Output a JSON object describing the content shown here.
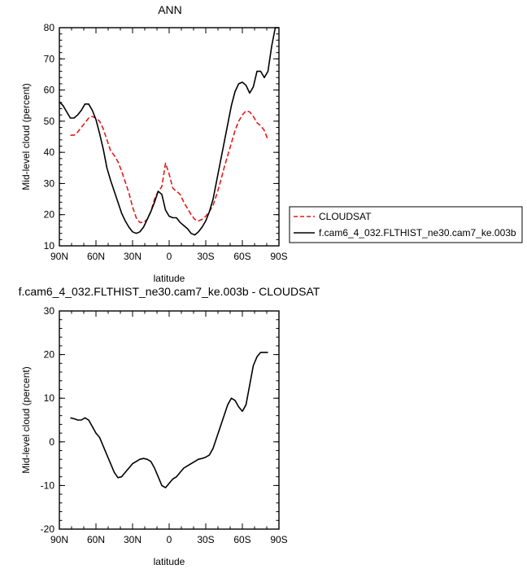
{
  "chart_data": [
    {
      "type": "line",
      "title": "ANN",
      "xlabel": "latitude",
      "ylabel": "Mid-level cloud (percent)",
      "xlim": [
        90,
        -90
      ],
      "ylim": [
        10,
        80
      ],
      "xticks": [
        90,
        60,
        30,
        0,
        -30,
        -60,
        -90
      ],
      "xtick_labels": [
        "90N",
        "60N",
        "30N",
        "0",
        "30S",
        "60S",
        "90S"
      ],
      "yticks": [
        10,
        20,
        30,
        40,
        50,
        60,
        70,
        80
      ],
      "ytick_labels": [
        "10",
        "20",
        "30",
        "40",
        "50",
        "60",
        "70",
        "80"
      ],
      "legend": "right",
      "series": [
        {
          "name": "CLOUDSAT",
          "color": "#e41a1c",
          "style": "dashed",
          "x": [
            81,
            78,
            75,
            72,
            69,
            66,
            63,
            60,
            57,
            54,
            51,
            48,
            45,
            42,
            39,
            36,
            33,
            30,
            27,
            24,
            21,
            18,
            15,
            12,
            9,
            6,
            3,
            0,
            -3,
            -6,
            -9,
            -12,
            -15,
            -18,
            -21,
            -24,
            -27,
            -30,
            -33,
            -36,
            -39,
            -42,
            -45,
            -48,
            -51,
            -54,
            -57,
            -60,
            -63,
            -66,
            -69,
            -72,
            -75,
            -78,
            -81
          ],
          "y": [
            45.5,
            45.5,
            46.5,
            48.0,
            49.5,
            51.0,
            51.5,
            51.0,
            50.0,
            47.5,
            44.0,
            40.5,
            39.0,
            37.0,
            34.0,
            30.5,
            27.0,
            22.5,
            19.0,
            17.5,
            17.5,
            18.5,
            21.0,
            25.0,
            27.5,
            29.0,
            36.5,
            33.0,
            28.5,
            27.5,
            26.5,
            24.0,
            22.0,
            20.0,
            18.5,
            18.0,
            18.5,
            19.5,
            21.0,
            23.0,
            26.5,
            30.5,
            35.0,
            39.0,
            43.0,
            47.0,
            50.0,
            52.0,
            53.3,
            53.0,
            51.5,
            49.5,
            48.5,
            47.0,
            44.0
          ]
        },
        {
          "name": "f.cam6_4_032.FLTHIST_ne30.cam7_ke.003b",
          "color": "#000000",
          "style": "solid",
          "x": [
            90,
            87,
            84,
            81,
            78,
            75,
            72,
            69,
            66,
            63,
            60,
            57,
            54,
            51,
            48,
            45,
            42,
            39,
            36,
            33,
            30,
            27,
            24,
            21,
            18,
            15,
            12,
            9,
            6,
            3,
            0,
            -3,
            -6,
            -9,
            -12,
            -15,
            -18,
            -21,
            -24,
            -27,
            -30,
            -33,
            -36,
            -39,
            -42,
            -45,
            -48,
            -51,
            -54,
            -57,
            -60,
            -63,
            -66,
            -69,
            -72,
            -75,
            -78,
            -81,
            -84,
            -87,
            -90
          ],
          "y": [
            56.2,
            55.0,
            53.0,
            51.0,
            51.0,
            52.0,
            53.5,
            55.5,
            55.5,
            53.5,
            50.5,
            46.0,
            41.0,
            35.0,
            31.0,
            27.5,
            24.0,
            20.5,
            18.0,
            16.0,
            14.5,
            14.0,
            14.5,
            16.0,
            18.5,
            21.0,
            24.0,
            27.5,
            26.5,
            21.5,
            19.5,
            19.0,
            19.0,
            17.5,
            16.5,
            15.5,
            14.0,
            13.5,
            14.5,
            16.0,
            18.0,
            21.0,
            25.0,
            31.0,
            37.0,
            43.0,
            49.0,
            55.0,
            59.5,
            62.0,
            62.5,
            61.5,
            59.0,
            61.0,
            66.0,
            66.0,
            64.0,
            66.0,
            74.0,
            80.0,
            80.0
          ]
        }
      ]
    },
    {
      "type": "line",
      "title": "f.cam6_4_032.FLTHIST_ne30.cam7_ke.003b - CLOUDSAT",
      "xlabel": "latitude",
      "ylabel": "Mid-level cloud (percent)",
      "xlim": [
        90,
        -90
      ],
      "ylim": [
        -20,
        30
      ],
      "xticks": [
        90,
        60,
        30,
        0,
        -30,
        -60,
        -90
      ],
      "xtick_labels": [
        "90N",
        "60N",
        "30N",
        "0",
        "30S",
        "60S",
        "90S"
      ],
      "yticks": [
        -20,
        -10,
        0,
        10,
        20,
        30
      ],
      "ytick_labels": [
        "-20",
        "-10",
        "0",
        "10",
        "20",
        "30"
      ],
      "series": [
        {
          "color": "#000000",
          "style": "solid",
          "x": [
            81,
            78,
            75,
            72,
            69,
            66,
            63,
            60,
            57,
            54,
            51,
            48,
            45,
            42,
            39,
            36,
            33,
            30,
            27,
            24,
            21,
            18,
            15,
            12,
            9,
            6,
            3,
            0,
            -3,
            -6,
            -9,
            -12,
            -15,
            -18,
            -21,
            -24,
            -27,
            -30,
            -33,
            -36,
            -39,
            -42,
            -45,
            -48,
            -51,
            -54,
            -57,
            -60,
            -63,
            -66,
            -69,
            -72,
            -75,
            -78,
            -81
          ],
          "y": [
            5.5,
            5.3,
            5.0,
            5.0,
            5.5,
            5.0,
            3.5,
            2.0,
            1.0,
            -1.0,
            -3.0,
            -5.0,
            -7.0,
            -8.2,
            -8.0,
            -7.0,
            -6.0,
            -5.0,
            -4.5,
            -4.0,
            -3.8,
            -4.0,
            -4.5,
            -6.0,
            -8.0,
            -10.0,
            -10.5,
            -9.5,
            -8.5,
            -8.0,
            -7.0,
            -6.0,
            -5.5,
            -5.0,
            -4.5,
            -4.0,
            -3.8,
            -3.5,
            -3.0,
            -1.5,
            1.0,
            3.5,
            6.0,
            8.5,
            10.0,
            9.5,
            8.0,
            7.0,
            8.5,
            13.0,
            17.5,
            19.5,
            20.5,
            20.5,
            20.5
          ]
        }
      ]
    }
  ]
}
